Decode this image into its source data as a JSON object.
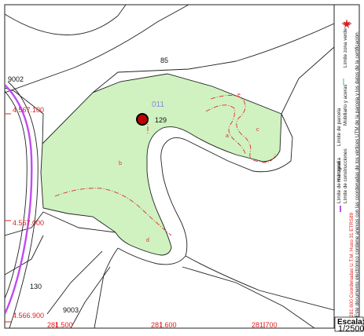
{
  "map": {
    "parcels": {
      "top": "85",
      "left_upper": "9002",
      "bottom_left": "130",
      "bottom_mid": "9003",
      "highlight_number": "129",
      "highlight_code": "011"
    },
    "subparcels": [
      "a",
      "b",
      "c",
      "d",
      "e"
    ],
    "coords_y": [
      "4.567.100",
      "4.567.000",
      "4.566.900"
    ],
    "coords_x": [
      "281.500",
      "281.600",
      "281.700"
    ]
  },
  "legend": {
    "hidrografia": "Hidrografía",
    "limite_parcela": "Límite de parcela",
    "mobiliario": "Mobiliario y aceras",
    "limite_zona_verde": "Límite zona verde",
    "limite_manzana": "Límite de manzana",
    "limite_construcciones": "Límite de construcciones",
    "coordenadas": "281.600 Coordenadas U.T.M. Huso 31 ETRS89",
    "nota": "Este documento electrónico contiene anexos con las coordenadas de los vértices UTM de la parcela y los datos de la certificación."
  },
  "scale": {
    "label": "Escala:",
    "value": "1/2500"
  },
  "colors": {
    "parcel_fill": "#cff2c0",
    "hydro": "#c04cf0",
    "coord_text": "#e02020",
    "marker": "#c00000",
    "code_text": "#8a88d8",
    "green_line": "#40c8c0"
  },
  "icons": {
    "north_arrow": "north-arrow-icon"
  }
}
